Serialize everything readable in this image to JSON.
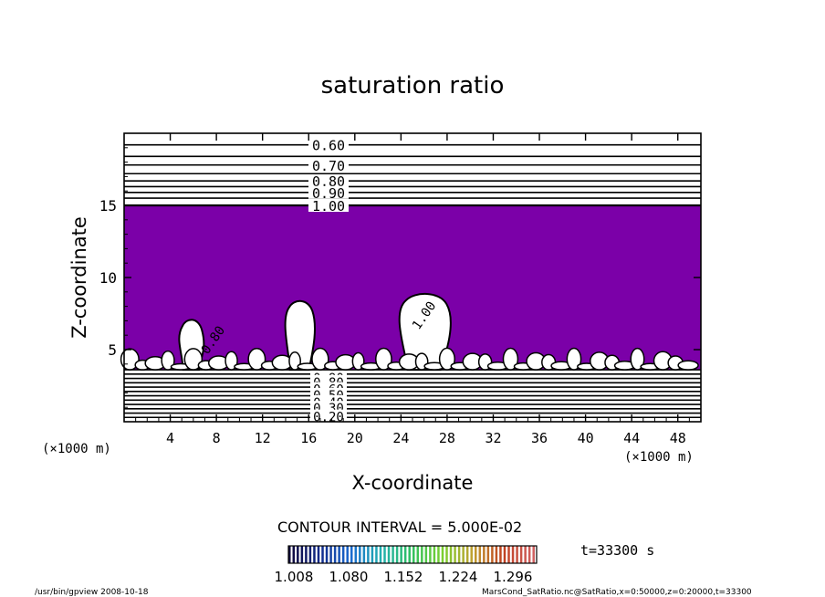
{
  "chart_data": {
    "type": "heatmap",
    "title": "saturation ratio",
    "xlabel": "X-coordinate",
    "ylabel": "Z-coordinate",
    "x_unit_left": "(×1000 m)",
    "x_unit_right": "(×1000 m)",
    "xlim": [
      0,
      50
    ],
    "ylim": [
      0,
      20
    ],
    "x_ticks": [
      4,
      8,
      12,
      16,
      20,
      24,
      28,
      32,
      36,
      40,
      44,
      48
    ],
    "y_ticks": [
      5,
      10,
      15
    ],
    "filled_region": {
      "color": "#7b00a8",
      "z_from": 3.6,
      "z_to": 15.0
    },
    "upper_contours": [
      0.6,
      0.65,
      0.7,
      0.75,
      0.8,
      0.85,
      0.9,
      0.95,
      1.0
    ],
    "upper_contour_z": [
      19.2,
      18.4,
      17.8,
      17.2,
      16.7,
      16.3,
      15.9,
      15.5,
      15.0
    ],
    "contour_labels_upper": [
      "0.60",
      "0.70",
      "0.80",
      "0.90",
      "1.00"
    ],
    "contour_labels_lower": [
      "0.90",
      "0.80",
      "0.60",
      "0.50",
      "0.40",
      "0.30",
      "0.20"
    ],
    "contour_labels_lower_z": [
      3.1,
      2.8,
      2.3,
      1.9,
      1.4,
      1.0,
      0.4
    ],
    "lower_contours_z": [
      3.6,
      3.3,
      3.0,
      2.7,
      2.4,
      2.1,
      1.8,
      1.5,
      1.2,
      0.9,
      0.6,
      0.3
    ],
    "inline_labels": [
      {
        "text": "1.00",
        "x": 26.3,
        "z": 7.2,
        "rotate": -55
      },
      {
        "text": "0.80",
        "x": 8.0,
        "z": 5.5,
        "rotate": -55
      }
    ],
    "plumes": [
      {
        "x": 5.8,
        "z_top": 7.0,
        "width": 2.5
      },
      {
        "x": 15.2,
        "z_top": 8.3,
        "width": 3.0
      },
      {
        "x": 26.0,
        "z_top": 8.8,
        "width": 5.2
      }
    ],
    "contour_interval": "CONTOUR INTERVAL = 5.000E-02",
    "colorbar": {
      "ticks": [
        "1.008",
        "1.080",
        "1.152",
        "1.224",
        "1.296"
      ],
      "colors": [
        "#10083a",
        "#102a8a",
        "#1a6ad0",
        "#22b0b0",
        "#30c060",
        "#7ad030",
        "#c0a030",
        "#c04020",
        "#d06060"
      ]
    },
    "time_label": "t=33300 s"
  },
  "footer": {
    "left": "/usr/bin/gpview   2008-10-18",
    "right": "MarsCond_SatRatio.nc@SatRatio,x=0:50000,z=0:20000,t=33300"
  }
}
